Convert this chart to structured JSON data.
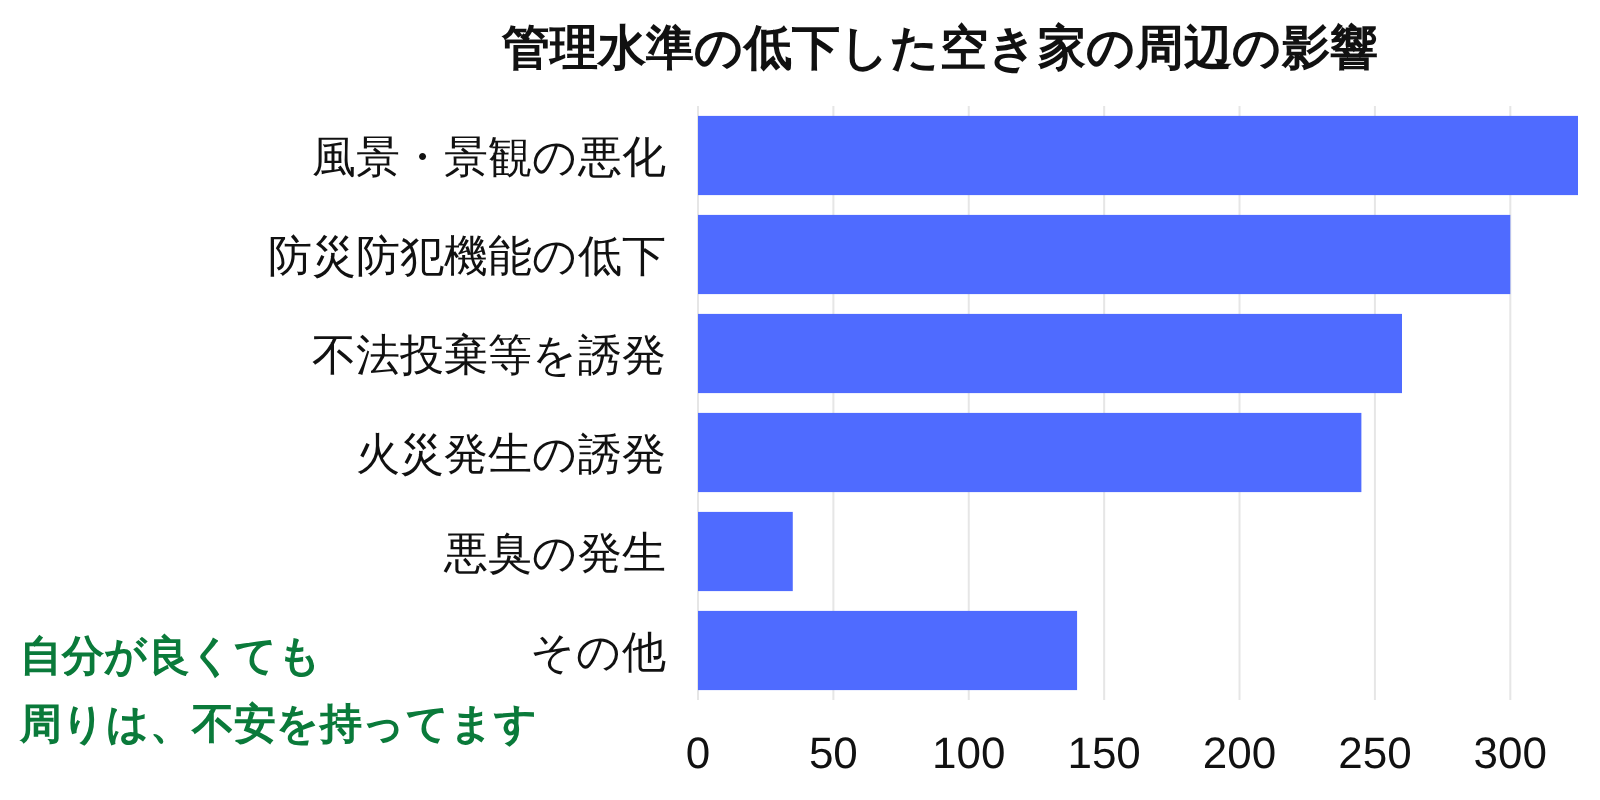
{
  "chart_data": {
    "type": "bar",
    "orientation": "horizontal",
    "title": "管理水準の低下した空き家の周辺の影響",
    "categories": [
      "風景・景観の悪化",
      "防災防犯機能の低下",
      "不法投棄等を誘発",
      "火災発生の誘発",
      "悪臭の発生",
      "その他"
    ],
    "values": [
      325,
      300,
      260,
      245,
      35,
      140
    ],
    "color": "#4f6bff",
    "xlim": [
      0,
      325
    ],
    "xticks": [
      0,
      50,
      100,
      150,
      200,
      250,
      300
    ],
    "grid": "x",
    "annotations": [
      "自分が良くても",
      "周りは、不安を持ってます"
    ]
  }
}
